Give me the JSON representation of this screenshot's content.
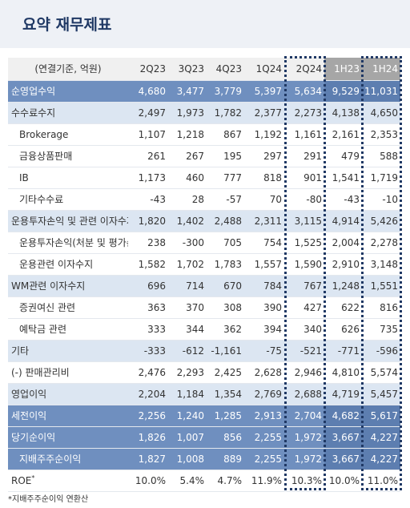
{
  "header": {
    "title": "요약 재무제표"
  },
  "table": {
    "columns": [
      "(연결기준, 억원)",
      "2Q23",
      "3Q23",
      "4Q23",
      "1Q24",
      "2Q24",
      "1H23",
      "1H24"
    ],
    "rows": [
      [
        "순영업수익",
        "4,680",
        "3,477",
        "3,779",
        "5,397",
        "5,634",
        "9,529",
        "11,031"
      ],
      [
        "수수료수지",
        "2,497",
        "1,973",
        "1,782",
        "2,377",
        "2,273",
        "4,138",
        "4,650"
      ],
      [
        "Brokerage",
        "1,107",
        "1,218",
        "867",
        "1,192",
        "1,161",
        "2,161",
        "2,353"
      ],
      [
        "금융상품판매",
        "261",
        "267",
        "195",
        "297",
        "291",
        "479",
        "588"
      ],
      [
        "IB",
        "1,173",
        "460",
        "777",
        "818",
        "901",
        "1,541",
        "1,719"
      ],
      [
        "기타수수료",
        "-43",
        "28",
        "-57",
        "70",
        "-80",
        "-43",
        "-10"
      ],
      [
        "운용투자손익 및 관련 이자수지",
        "1,820",
        "1,402",
        "2,488",
        "2,311",
        "3,115",
        "4,914",
        "5,426"
      ],
      [
        "운용투자손익(처분 및 평가손익)",
        "238",
        "-300",
        "705",
        "754",
        "1,525",
        "2,004",
        "2,278"
      ],
      [
        "운용관련 이자수지",
        "1,582",
        "1,702",
        "1,783",
        "1,557",
        "1,590",
        "2,910",
        "3,148"
      ],
      [
        "WM관련 이자수지",
        "696",
        "714",
        "670",
        "784",
        "767",
        "1,248",
        "1,551"
      ],
      [
        "증권여신 관련",
        "363",
        "370",
        "308",
        "390",
        "427",
        "622",
        "816"
      ],
      [
        "예탁금 관련",
        "333",
        "344",
        "362",
        "394",
        "340",
        "626",
        "735"
      ],
      [
        "기타",
        "-333",
        "-612",
        "-1,161",
        "-75",
        "-521",
        "-771",
        "-596"
      ],
      [
        "(-) 판매관리비",
        "2,476",
        "2,293",
        "2,425",
        "2,628",
        "2,946",
        "4,810",
        "5,574"
      ],
      [
        "영업이익",
        "2,204",
        "1,184",
        "1,354",
        "2,769",
        "2,688",
        "4,719",
        "5,457"
      ],
      [
        "세전이익",
        "2,256",
        "1,240",
        "1,285",
        "2,913",
        "2,704",
        "4,682",
        "5,617"
      ],
      [
        "당기순이익",
        "1,826",
        "1,007",
        "856",
        "2,255",
        "1,972",
        "3,667",
        "4,227"
      ],
      [
        "지배주주순이익",
        "1,827",
        "1,008",
        "889",
        "2,255",
        "1,972",
        "3,667",
        "4,227"
      ],
      [
        "ROE",
        "10.0%",
        "5.4%",
        "4.7%",
        "11.9%",
        "10.3%",
        "10.0%",
        "11.0%"
      ]
    ],
    "roe_mark": "*"
  },
  "footnote": "*지배주주순이익 연환산"
}
